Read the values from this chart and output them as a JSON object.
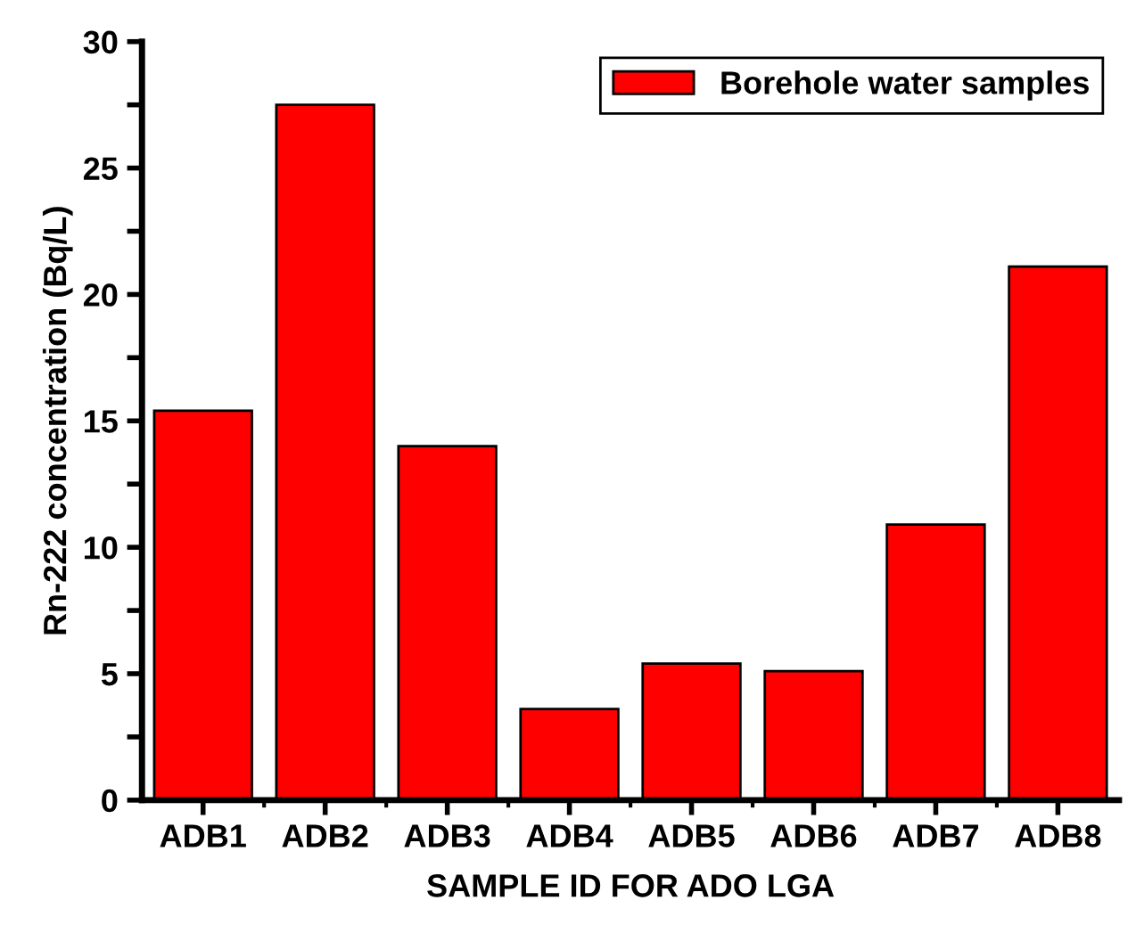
{
  "chart_data": {
    "type": "bar",
    "xlabel": "SAMPLE ID FOR ADO LGA",
    "ylabel": "Rn-222 concentration (Bq/L)",
    "categories": [
      "ADB1",
      "ADB2",
      "ADB3",
      "ADB4",
      "ADB5",
      "ADB6",
      "ADB7",
      "ADB8"
    ],
    "series": [
      {
        "name": "Borehole water samples",
        "color": "#ff0000",
        "values": [
          15.4,
          27.5,
          14.0,
          3.6,
          5.4,
          5.1,
          10.9,
          21.1
        ]
      }
    ],
    "ylim": [
      0,
      30
    ],
    "yticks": [
      0,
      {
        "value": 2.5,
        "label": null
      },
      5,
      {
        "value": 7.5,
        "label": null
      },
      10,
      {
        "value": 12.5,
        "label": null
      },
      15,
      {
        "value": 17.5,
        "label": null
      },
      20,
      {
        "value": 22.5,
        "label": null
      },
      25,
      {
        "value": 27.5,
        "label": null
      },
      30
    ],
    "legend": "top right",
    "grid": false
  }
}
